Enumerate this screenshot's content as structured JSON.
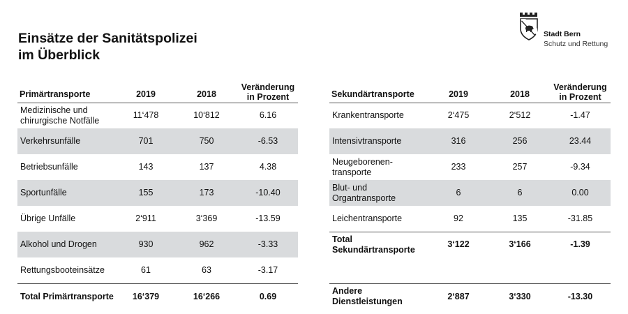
{
  "header": {
    "title_line1": "Einsätze der Sanitätspolizei",
    "title_line2": "im Überblick"
  },
  "logo": {
    "name": "Stadt Bern",
    "subtitle": "Schutz und Rettung"
  },
  "primary": {
    "headers": [
      "Primärtransporte",
      "2019",
      "2018",
      "Veränderung in Prozent"
    ],
    "rows": [
      {
        "label": "Medizinische und chirurgische Notfälle",
        "y2019": "11‘478",
        "y2018": "10‘812",
        "change": "6.16",
        "shaded": false
      },
      {
        "label": "Verkehrsunfälle",
        "y2019": "701",
        "y2018": "750",
        "change": "-6.53",
        "shaded": true
      },
      {
        "label": "Betriebsunfälle",
        "y2019": "143",
        "y2018": "137",
        "change": "4.38",
        "shaded": false
      },
      {
        "label": "Sportunfälle",
        "y2019": "155",
        "y2018": "173",
        "change": "-10.40",
        "shaded": true
      },
      {
        "label": "Übrige Unfälle",
        "y2019": "2‘911",
        "y2018": "3‘369",
        "change": "-13.59",
        "shaded": false
      },
      {
        "label": "Alkohol und Drogen",
        "y2019": "930",
        "y2018": "962",
        "change": "-3.33",
        "shaded": true
      },
      {
        "label": "Rettungsbooteinsätze",
        "y2019": "61",
        "y2018": "63",
        "change": "-3.17",
        "shaded": false
      }
    ],
    "total": {
      "label": "Total Primärtransporte",
      "y2019": "16‘379",
      "y2018": "16‘266",
      "change": "0.69"
    }
  },
  "secondary": {
    "headers": [
      "Sekundärtransporte",
      "2019",
      "2018",
      "Veränderung in Prozent"
    ],
    "rows": [
      {
        "label": "Krankentransporte",
        "y2019": "2‘475",
        "y2018": "2‘512",
        "change": "-1.47",
        "shaded": false
      },
      {
        "label": "Intensivtransporte",
        "y2019": "316",
        "y2018": "256",
        "change": "23.44",
        "shaded": true
      },
      {
        "label": "Neugeborenen-transporte",
        "y2019": "233",
        "y2018": "257",
        "change": "-9.34",
        "shaded": false
      },
      {
        "label": "Blut- und Organtransporte",
        "y2019": "6",
        "y2018": "6",
        "change": "0.00",
        "shaded": true
      },
      {
        "label": "Leichentransporte",
        "y2019": "92",
        "y2018": "135",
        "change": "-31.85",
        "shaded": false
      }
    ],
    "total": {
      "label": "Total Sekundärtransporte",
      "y2019": "3‘122",
      "y2018": "3‘166",
      "change": "-1.39"
    },
    "other": {
      "label": "Andere Dienstleistungen",
      "y2019": "2‘887",
      "y2018": "3‘330",
      "change": "-13.30"
    }
  }
}
